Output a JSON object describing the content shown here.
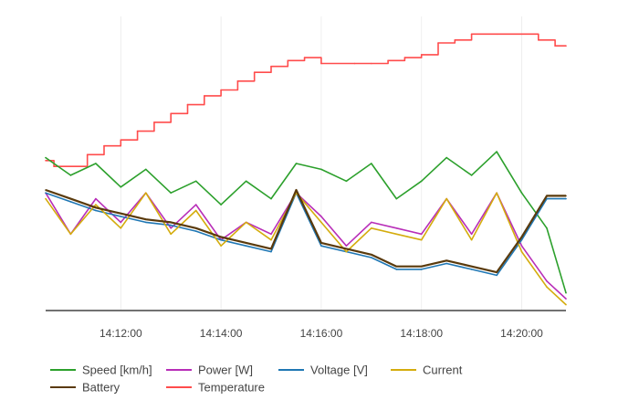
{
  "chart_data": {
    "type": "line",
    "title": "",
    "xlabel": "",
    "ylabel": "",
    "grid": "vertical",
    "legend_position": "bottom-left",
    "x_range": [
      "14:10:30",
      "14:20:53"
    ],
    "y_range": [
      0,
      100
    ],
    "x_ticks": [
      "14:12:00",
      "14:14:00",
      "14:16:00",
      "14:18:00",
      "14:20:00"
    ],
    "series": [
      {
        "name": "Speed [km/h]",
        "color": "#2ca02c",
        "x": [
          "14:10:30",
          "14:11:00",
          "14:11:30",
          "14:12:00",
          "14:12:30",
          "14:13:00",
          "14:13:30",
          "14:14:00",
          "14:14:30",
          "14:15:00",
          "14:15:30",
          "14:16:00",
          "14:16:30",
          "14:17:00",
          "14:17:30",
          "14:18:00",
          "14:18:30",
          "14:19:00",
          "14:19:30",
          "14:20:00",
          "14:20:30",
          "14:20:53"
        ],
        "values": [
          52,
          46,
          50,
          42,
          48,
          40,
          44,
          36,
          44,
          38,
          50,
          48,
          44,
          50,
          38,
          44,
          52,
          46,
          54,
          40,
          28,
          6
        ]
      },
      {
        "name": "Power [W]",
        "color": "#b82eb8",
        "x": [
          "14:10:30",
          "14:11:00",
          "14:11:30",
          "14:12:00",
          "14:12:30",
          "14:13:00",
          "14:13:30",
          "14:14:00",
          "14:14:30",
          "14:15:00",
          "14:15:30",
          "14:16:00",
          "14:16:30",
          "14:17:00",
          "14:17:30",
          "14:18:00",
          "14:18:30",
          "14:19:00",
          "14:19:30",
          "14:20:00",
          "14:20:30",
          "14:20:53"
        ],
        "values": [
          40,
          26,
          38,
          30,
          40,
          28,
          36,
          24,
          30,
          26,
          40,
          32,
          22,
          30,
          28,
          26,
          38,
          26,
          40,
          22,
          10,
          4
        ]
      },
      {
        "name": "Voltage [V]",
        "color": "#1f77b4",
        "x": [
          "14:10:30",
          "14:11:00",
          "14:11:30",
          "14:12:00",
          "14:12:30",
          "14:13:00",
          "14:13:30",
          "14:14:00",
          "14:14:30",
          "14:15:00",
          "14:15:30",
          "14:16:00",
          "14:16:30",
          "14:17:00",
          "14:17:30",
          "14:18:00",
          "14:18:30",
          "14:19:00",
          "14:19:30",
          "14:20:00",
          "14:20:30",
          "14:20:53"
        ],
        "values": [
          40,
          37,
          34,
          32,
          30,
          29,
          27,
          24,
          22,
          20,
          40,
          22,
          20,
          18,
          14,
          14,
          16,
          14,
          12,
          24,
          38,
          38
        ]
      },
      {
        "name": "Current",
        "color": "#d4ac0d",
        "x": [
          "14:10:30",
          "14:11:00",
          "14:11:30",
          "14:12:00",
          "14:12:30",
          "14:13:00",
          "14:13:30",
          "14:14:00",
          "14:14:30",
          "14:15:00",
          "14:15:30",
          "14:16:00",
          "14:16:30",
          "14:17:00",
          "14:17:30",
          "14:18:00",
          "14:18:30",
          "14:19:00",
          "14:19:30",
          "14:20:00",
          "14:20:30",
          "14:20:53"
        ],
        "values": [
          38,
          26,
          36,
          28,
          40,
          26,
          34,
          22,
          30,
          24,
          40,
          30,
          20,
          28,
          26,
          24,
          38,
          24,
          40,
          20,
          8,
          2
        ]
      },
      {
        "name": "Battery",
        "color": "#5a3a0c",
        "x": [
          "14:10:30",
          "14:11:00",
          "14:11:30",
          "14:12:00",
          "14:12:30",
          "14:13:00",
          "14:13:30",
          "14:14:00",
          "14:14:30",
          "14:15:00",
          "14:15:30",
          "14:16:00",
          "14:16:30",
          "14:17:00",
          "14:17:30",
          "14:18:00",
          "14:18:30",
          "14:19:00",
          "14:19:30",
          "14:20:00",
          "14:20:30",
          "14:20:53"
        ],
        "values": [
          41,
          38,
          35,
          33,
          31,
          30,
          28,
          25,
          23,
          21,
          41,
          23,
          21,
          19,
          15,
          15,
          17,
          15,
          13,
          25,
          39,
          39
        ]
      },
      {
        "name": "Temperature",
        "color": "#ff4c4c",
        "x": [
          "14:10:30",
          "14:10:40",
          "14:11:20",
          "14:11:40",
          "14:12:00",
          "14:12:20",
          "14:12:40",
          "14:13:00",
          "14:13:20",
          "14:13:40",
          "14:14:00",
          "14:14:20",
          "14:14:40",
          "14:15:00",
          "14:15:20",
          "14:15:40",
          "14:16:00",
          "14:16:40",
          "14:17:00",
          "14:17:20",
          "14:17:40",
          "14:18:00",
          "14:18:20",
          "14:18:40",
          "14:19:00",
          "14:19:30",
          "14:20:00",
          "14:20:20",
          "14:20:40",
          "14:20:53"
        ],
        "values": [
          51,
          49,
          53,
          56,
          58,
          61,
          64,
          67,
          70,
          73,
          75,
          78,
          81,
          83,
          85,
          86,
          84,
          84,
          84,
          85,
          86,
          87,
          91,
          92,
          94,
          94,
          94,
          92,
          90,
          90
        ]
      }
    ]
  }
}
